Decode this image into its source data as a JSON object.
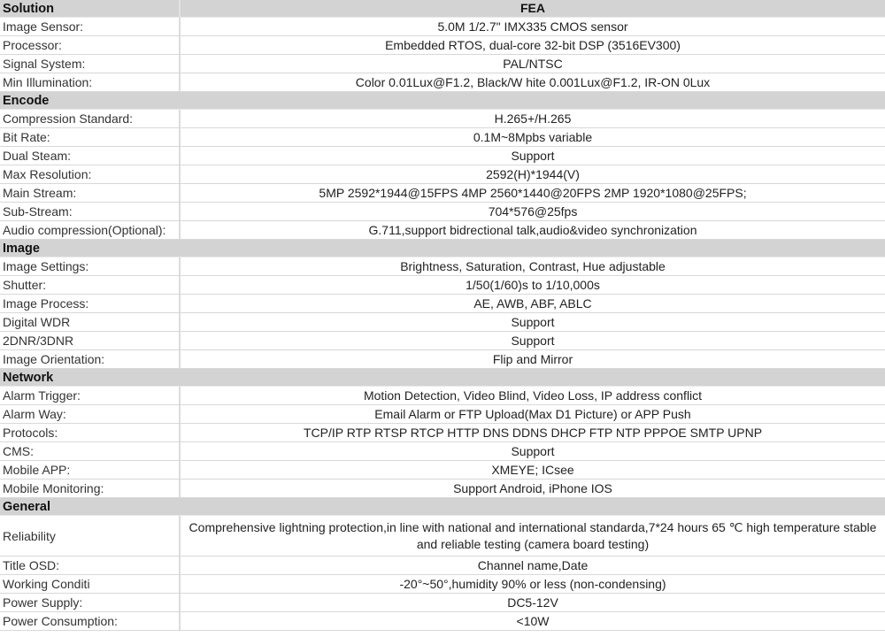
{
  "sections": [
    {
      "title": "Solution",
      "value": "FEA",
      "rows": [
        {
          "label": "Image Sensor:",
          "value": "5.0M 1/2.7\" IMX335 CMOS sensor"
        },
        {
          "label": "Processor:",
          "value": "Embedded RTOS, dual-core 32-bit DSP (3516EV300)"
        },
        {
          "label": "Signal System:",
          "value": "PAL/NTSC"
        },
        {
          "label": "Min Illumination:",
          "value": "Color 0.01Lux@F1.2,  Black/W hite 0.001Lux@F1.2,  IR-ON 0Lux"
        }
      ]
    },
    {
      "title": "Encode",
      "rows": [
        {
          "label": "Compression Standard:",
          "value": "H.265+/H.265"
        },
        {
          "label": "Bit Rate:",
          "value": "0.1M~8Mpbs variable"
        },
        {
          "label": "Dual Steam:",
          "value": "Support"
        },
        {
          "label": "Max Resolution:",
          "value": "2592(H)*1944(V)"
        },
        {
          "label": "Main Stream:",
          "value": "5MP 2592*1944@15FPS 4MP 2560*1440@20FPS 2MP 1920*1080@25FPS;"
        },
        {
          "label": "Sub-Stream:",
          "value": "704*576@25fps"
        },
        {
          "label": "Audio compression(Optional):",
          "value": "G.711,support bidrectional talk,audio&video synchronization"
        }
      ]
    },
    {
      "title": "Image",
      "rows": [
        {
          "label": "Image Settings:",
          "value": "Brightness, Saturation, Contrast, Hue adjustable"
        },
        {
          "label": "Shutter:",
          "value": "1/50(1/60)s to 1/10,000s"
        },
        {
          "label": "Image Process:",
          "value": "AE, AWB, ABF, ABLC"
        },
        {
          "label": "Digital WDR",
          "value": "Support"
        },
        {
          "label": "2DNR/3DNR",
          "value": "Support"
        },
        {
          "label": "Image Orientation:",
          "value": "Flip and Mirror"
        }
      ]
    },
    {
      "title": "Network",
      "rows": [
        {
          "label": "Alarm Trigger:",
          "value": "Motion Detection, Video Blind, Video Loss, IP address conflict"
        },
        {
          "label": "Alarm Way:",
          "value": "Email Alarm or FTP Upload(Max D1 Picture) or APP Push"
        },
        {
          "label": "Protocols:",
          "value": "TCP/IP RTP RTSP RTCP HTTP DNS DDNS DHCP FTP NTP PPPOE SMTP UPNP"
        },
        {
          "label": "CMS:",
          "value": "Support"
        },
        {
          "label": "Mobile APP:",
          "value": "XMEYE;  ICsee"
        },
        {
          "label": "Mobile Monitoring:",
          "value": "Support Android, iPhone IOS"
        }
      ]
    },
    {
      "title": "General",
      "rows": [
        {
          "label": "Reliability",
          "value": "Comprehensive lightning protection,in line with national and international standarda,7*24 hours 65 ℃ high temperature stable and reliable testing (camera board testing)",
          "tall": true
        },
        {
          "label": "Title OSD:",
          "value": "Channel name,Date"
        },
        {
          "label": "Working Conditi",
          "value": "-20°~50°,humidity 90% or less (non-condensing)"
        },
        {
          "label": "Power Supply:",
          "value": "DC5-12V"
        },
        {
          "label": "Power Consumption:",
          "value": "<10W"
        }
      ]
    }
  ]
}
